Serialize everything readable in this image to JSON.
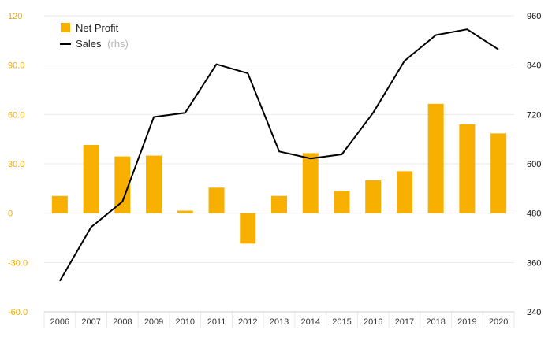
{
  "chart_data": {
    "type": "bar+line",
    "categories": [
      "2006",
      "2007",
      "2008",
      "2009",
      "2010",
      "2011",
      "2012",
      "2013",
      "2014",
      "2015",
      "2016",
      "2017",
      "2018",
      "2019",
      "2020"
    ],
    "series": [
      {
        "name": "Net Profit",
        "type": "bar",
        "axis": "left",
        "color": "#f7b000",
        "values": [
          10.5,
          41.5,
          34.5,
          35,
          1.5,
          15.5,
          -18.5,
          10.5,
          36.5,
          13.5,
          20,
          25.5,
          66.5,
          54,
          48.5
        ]
      },
      {
        "name": "Sales",
        "name_suffix": "(rhs)",
        "type": "line",
        "axis": "right",
        "color": "#000000",
        "values": [
          315,
          446,
          508,
          714,
          724,
          842,
          820,
          630,
          613,
          623,
          724,
          850,
          913,
          927,
          878
        ]
      }
    ],
    "y_left": {
      "ylim": [
        -60,
        120
      ],
      "ticks": [
        -60,
        -30,
        0,
        30,
        60,
        90,
        120
      ],
      "tick_labels": [
        "-60.0",
        "-30.0",
        "0",
        "30.0",
        "60.0",
        "90.0",
        "120"
      ],
      "color": "#f2ab00"
    },
    "y_right": {
      "ylim": [
        240,
        960
      ],
      "ticks": [
        240,
        360,
        480,
        600,
        720,
        840,
        960
      ],
      "tick_labels": [
        "240",
        "360",
        "480",
        "600",
        "720",
        "840",
        "960"
      ]
    },
    "grid": true,
    "legend": "top-left"
  }
}
